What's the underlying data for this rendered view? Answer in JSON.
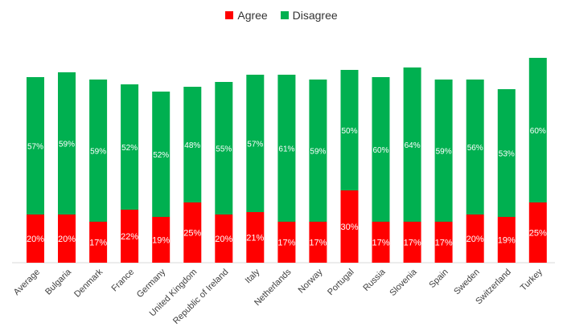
{
  "chart_data": {
    "type": "bar",
    "stacked": true,
    "legend_position": "top-center",
    "categories": [
      "Average",
      "Bulgaria",
      "Denmark",
      "France",
      "Germany",
      "United Kingdom",
      "Republic of Ireland",
      "Italy",
      "Netherlands",
      "Norway",
      "Portugal",
      "Russia",
      "Slovenia",
      "Spain",
      "Sweden",
      "Switzerland",
      "Turkey"
    ],
    "series": [
      {
        "name": "Agree",
        "color": "#ff0000",
        "values": [
          20,
          20,
          17,
          22,
          19,
          25,
          20,
          21,
          17,
          17,
          30,
          17,
          17,
          17,
          20,
          19,
          25
        ],
        "labels": [
          "20%",
          "20%",
          "17%",
          "22%",
          "19%",
          "25%",
          "20%",
          "21%",
          "17%",
          "17%",
          "30%",
          "17%",
          "17%",
          "17%",
          "20%",
          "19%",
          "25%"
        ]
      },
      {
        "name": "Disagree",
        "color": "#00b050",
        "values": [
          57,
          59,
          59,
          52,
          52,
          48,
          55,
          57,
          61,
          59,
          50,
          60,
          64,
          59,
          56,
          53,
          60
        ],
        "labels": [
          "57%",
          "59%",
          "59%",
          "52%",
          "52%",
          "48%",
          "55%",
          "57%",
          "61%",
          "59%",
          "50%",
          "60%",
          "64%",
          "59%",
          "56%",
          "53%",
          "60%"
        ]
      }
    ],
    "ylim": [
      0,
      85
    ],
    "grid": false,
    "title": "",
    "xlabel": "",
    "ylabel": ""
  }
}
